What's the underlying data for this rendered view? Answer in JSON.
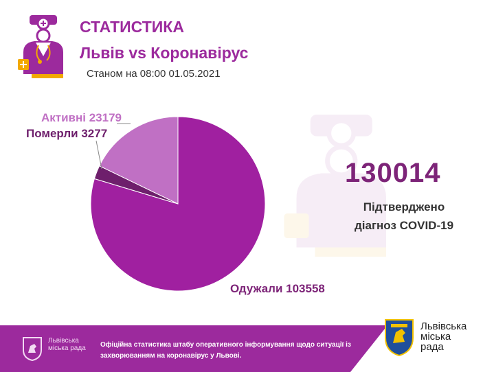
{
  "header": {
    "title": "СТАТИСТИКА",
    "subtitle": "Львів vs Коронавірус",
    "date": "Станом на 08:00 01.05.2021"
  },
  "summary": {
    "total": "130014",
    "total_label_line1": "Підтверджено",
    "total_label_line2": "діагноз COVID-19"
  },
  "chart_data": {
    "type": "pie",
    "title": "",
    "slices": [
      {
        "label": "Одужали",
        "value": 103558,
        "color": "#a020a0",
        "text": "Одужали 103558"
      },
      {
        "label": "Активні",
        "value": 23179,
        "color": "#c070c4",
        "text": "Активні 23179"
      },
      {
        "label": "Померли",
        "value": 3277,
        "color": "#6e1f6c",
        "text": "Померли 3277"
      }
    ]
  },
  "footer": {
    "city_small": "Львівська міська рада",
    "notice": "Офіційна статистика штабу оперативного інформування щодо ситуації із захворюванням на коронавірус у Львові.",
    "city_large_line1": "Львівська",
    "city_large_line2": "міська",
    "city_large_line3": "рада"
  },
  "icons": [
    "doctor-icon",
    "doctor-watermark-icon",
    "lviv-crest-icon"
  ]
}
